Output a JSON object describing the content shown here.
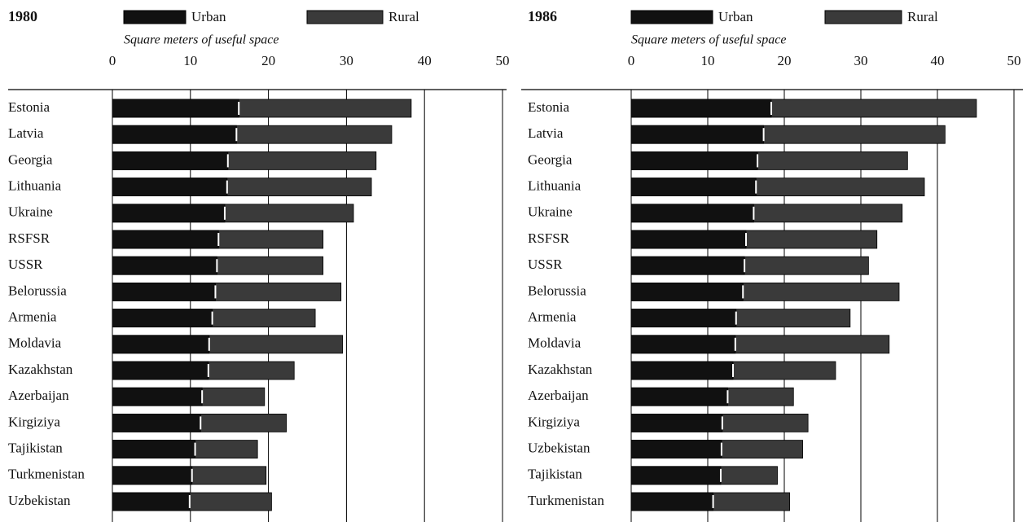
{
  "chart_data": [
    {
      "type": "bar",
      "orientation": "horizontal",
      "title": "1980",
      "x_label": "Square meters of useful space",
      "categories": [
        "Estonia",
        "Latvia",
        "Georgia",
        "Lithuania",
        "Ukraine",
        "RSFSR",
        "USSR",
        "Belorussia",
        "Armenia",
        "Moldavia",
        "Kazakhstan",
        "Azerbaijan",
        "Kirgiziya",
        "Tajikistan",
        "Turkmenistan",
        "Uzbekistan"
      ],
      "series": [
        {
          "name": "Urban",
          "color": "#111111",
          "values": [
            16.2,
            15.9,
            14.8,
            14.7,
            14.4,
            13.6,
            13.4,
            13.2,
            12.8,
            12.4,
            12.3,
            11.5,
            11.3,
            10.6,
            10.2,
            9.9
          ]
        },
        {
          "name": "Rural",
          "color": "#3a3a3a",
          "values": [
            38.3,
            35.8,
            33.8,
            33.2,
            30.9,
            27.0,
            27.0,
            29.3,
            26.0,
            29.5,
            23.3,
            19.5,
            22.3,
            18.6,
            19.7,
            20.4
          ]
        }
      ],
      "xlim": [
        0,
        50
      ],
      "xticks": [
        0,
        10,
        20,
        30,
        40,
        50
      ],
      "grid": true
    },
    {
      "type": "bar",
      "orientation": "horizontal",
      "title": "1986",
      "x_label": "Square meters of useful space",
      "categories": [
        "Estonia",
        "Latvia",
        "Georgia",
        "Lithuania",
        "Ukraine",
        "RSFSR",
        "USSR",
        "Belorussia",
        "Armenia",
        "Moldavia",
        "Kazakhstan",
        "Azerbaijan",
        "Kirgiziya",
        "Uzbekistan",
        "Tajikistan",
        "Turkmenistan"
      ],
      "series": [
        {
          "name": "Urban",
          "color": "#111111",
          "values": [
            18.3,
            17.3,
            16.5,
            16.3,
            16.0,
            15.0,
            14.8,
            14.6,
            13.7,
            13.6,
            13.3,
            12.6,
            11.9,
            11.8,
            11.7,
            10.7
          ]
        },
        {
          "name": "Rural",
          "color": "#3a3a3a",
          "values": [
            45.1,
            41.0,
            36.1,
            38.3,
            35.4,
            32.1,
            31.0,
            35.0,
            28.6,
            33.7,
            26.7,
            21.2,
            23.1,
            22.4,
            19.1,
            20.7
          ]
        }
      ],
      "xlim": [
        0,
        50
      ],
      "xticks": [
        0,
        10,
        20,
        30,
        40,
        50
      ],
      "grid": true
    }
  ]
}
